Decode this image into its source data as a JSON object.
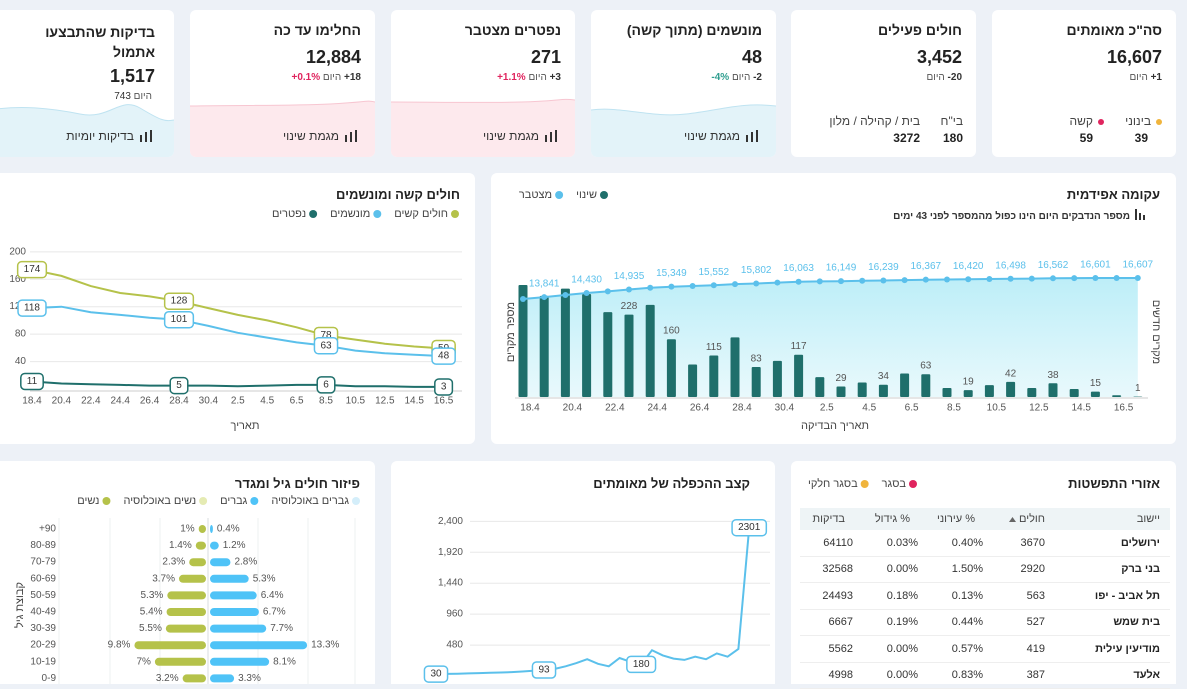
{
  "cards": [
    {
      "title": "סה\"כ מאומתים",
      "value": "16,607",
      "change": "+1",
      "today": "היום",
      "breakdown": [
        {
          "label": "בינוני",
          "value": "39"
        },
        {
          "label": "קשה",
          "value": "59"
        }
      ]
    },
    {
      "title": "חולים פעילים",
      "value": "3,452",
      "change": "-20",
      "today": "היום",
      "breakdown": [
        {
          "label": "בי\"ח",
          "value": "180"
        },
        {
          "label": "בית / קהילה / מלון",
          "value": "3272"
        }
      ]
    },
    {
      "title": "מונשמים (מתוך קשה)",
      "value": "48",
      "change": "-2",
      "today": "היום",
      "percent": "-4%",
      "footer": "מגמת שינוי"
    },
    {
      "title": "נפטרים מצטבר",
      "value": "271",
      "change": "+3",
      "today": "היום",
      "percent": "+1.1%",
      "footer": "מגמת שינוי"
    },
    {
      "title": "החלימו עד כה",
      "value": "12,884",
      "change": "+18",
      "today": "היום",
      "percent": "+0.1%",
      "footer": "מגמת שינוי"
    },
    {
      "title": "בדיקות שהתבצעו אתמול",
      "value": "1,517",
      "change": "743",
      "today": "היום",
      "footer": "בדיקות יומיות"
    }
  ],
  "severe_chart": {
    "type": "line",
    "title": "חולים קשה ומונשמים",
    "x_label": "תאריך",
    "categories": [
      "18.4",
      "20.4",
      "22.4",
      "24.4",
      "26.4",
      "28.4",
      "30.4",
      "2.5",
      "4.5",
      "6.5",
      "8.5",
      "10.5",
      "12.5",
      "14.5",
      "16.5"
    ],
    "series": [
      {
        "name": "חולים קשים",
        "color": "#b5c24a",
        "values": [
          174,
          165,
          150,
          140,
          135,
          128,
          118,
          108,
          100,
          90,
          78,
          72,
          66,
          62,
          59
        ],
        "value_labels": [
          "174",
          null,
          null,
          null,
          null,
          "128",
          null,
          null,
          null,
          null,
          "78",
          null,
          null,
          null,
          "59"
        ]
      },
      {
        "name": "מונשמים",
        "color": "#5bc0eb",
        "values": [
          118,
          120,
          112,
          108,
          104,
          101,
          92,
          82,
          75,
          68,
          63,
          56,
          52,
          50,
          48
        ],
        "value_labels": [
          "118",
          null,
          null,
          null,
          null,
          "101",
          null,
          null,
          null,
          null,
          "63",
          null,
          null,
          null,
          "48"
        ]
      },
      {
        "name": "נפטרים",
        "color": "#1f6f6b",
        "values": [
          11,
          8,
          7,
          6,
          5,
          5,
          5,
          4,
          5,
          6,
          6,
          4,
          4,
          3,
          3
        ],
        "value_labels": [
          "11",
          null,
          null,
          null,
          null,
          "5",
          null,
          null,
          null,
          null,
          "6",
          null,
          null,
          null,
          "3"
        ]
      }
    ],
    "ylim": [
      0,
      210
    ],
    "yticks": [
      40,
      80,
      120,
      160,
      200
    ]
  },
  "epidemic_chart": {
    "type": "bar",
    "title": "עקומה אפידמית",
    "subtitle": "מספר הנדבקים היום הינו כפול מהמספר לפני 43 ימים",
    "x_label": "תאריך הבדיקה",
    "y_label": "מספר מקרים",
    "y2_label": "מקרים חדשים",
    "categories": [
      "18.4",
      null,
      "20.4",
      null,
      "22.4",
      null,
      "24.4",
      null,
      "26.4",
      null,
      "28.4",
      null,
      "30.4",
      null,
      "2.5",
      null,
      "4.5",
      null,
      "6.5",
      null,
      "8.5",
      null,
      "10.5",
      null,
      "12.5",
      null,
      "14.5",
      null,
      "16.5",
      null
    ],
    "series": [
      {
        "name": "שינוי",
        "color": "#1f6f6b",
        "values": [
          310,
          280,
          300,
          285,
          235,
          228,
          255,
          160,
          90,
          115,
          165,
          83,
          100,
          117,
          55,
          29,
          40,
          34,
          65,
          63,
          25,
          19,
          33,
          42,
          25,
          38,
          22,
          15,
          5,
          1
        ],
        "value_labels": [
          null,
          null,
          null,
          null,
          null,
          "228",
          null,
          "160",
          null,
          "115",
          null,
          "83",
          null,
          "117",
          null,
          "29",
          null,
          "34",
          null,
          "63",
          null,
          "19",
          null,
          "42",
          null,
          "38",
          null,
          "15",
          null,
          "1"
        ]
      },
      {
        "name": "מצטבר",
        "color": "#5bc0eb",
        "values": [
          13560,
          13841,
          14140,
          14430,
          14660,
          14935,
          15190,
          15349,
          15440,
          15552,
          15720,
          15802,
          15945,
          16063,
          16120,
          16149,
          16205,
          16239,
          16304,
          16367,
          16395,
          16420,
          16456,
          16498,
          16524,
          16562,
          16586,
          16601,
          16606,
          16607
        ],
        "value_labels": [
          null,
          "13,841",
          null,
          "14,430",
          null,
          "14,935",
          null,
          "15,349",
          null,
          "15,552",
          null,
          "15,802",
          null,
          "16,063",
          null,
          "16,149",
          null,
          "16,239",
          null,
          "16,367",
          null,
          "16,420",
          null,
          "16,498",
          null,
          "16,562",
          null,
          "16,601",
          null,
          "16,607"
        ]
      }
    ]
  },
  "age_chart": {
    "type": "bar",
    "title": "פיזור חולים גיל ומגדר",
    "y_label": "קבוצת גיל",
    "categories": [
      "+90",
      "80-89",
      "70-79",
      "60-69",
      "50-59",
      "40-49",
      "30-39",
      "20-29",
      "10-19",
      "0-9"
    ],
    "series": [
      {
        "name": "גברים באוכלוסיה",
        "color": "#d4eefa"
      },
      {
        "name": "גברים",
        "color": "#4fc3f7",
        "side": "right",
        "values": [
          0.4,
          1.2,
          2.8,
          5.3,
          6.4,
          6.7,
          7.7,
          13.3,
          8.1,
          3.3
        ],
        "value_labels": [
          "0.4%",
          "1.2%",
          "2.8%",
          "5.3%",
          "6.4%",
          "6.7%",
          "7.7%",
          "13.3%",
          "8.1%",
          "3.3%"
        ]
      },
      {
        "name": "נשים באוכלוסיה",
        "color": "#e5ebb3"
      },
      {
        "name": "נשים",
        "color": "#b5c24a",
        "side": "left",
        "values": [
          1,
          1.4,
          2.3,
          3.7,
          5.3,
          5.4,
          5.5,
          9.8,
          7,
          3.2
        ],
        "value_labels": [
          "1%",
          "1.4%",
          "2.3%",
          "3.7%",
          "5.3%",
          "5.4%",
          "5.5%",
          "9.8%",
          "7%",
          "3.2%"
        ]
      }
    ]
  },
  "doubling_chart": {
    "type": "line",
    "title": "קצב ההכפלה של מאומתים",
    "color": "#5bc0eb",
    "values": [
      30,
      32,
      35,
      40,
      45,
      50,
      55,
      60,
      70,
      80,
      93,
      110,
      150,
      200,
      260,
      190,
      150,
      280,
      220,
      180,
      400,
      320,
      270,
      250,
      300,
      260,
      350,
      300,
      420,
      2301
    ],
    "value_labels": [
      "30",
      null,
      null,
      null,
      null,
      null,
      null,
      null,
      null,
      null,
      "93",
      null,
      null,
      null,
      null,
      null,
      null,
      null,
      null,
      "180",
      null,
      null,
      null,
      null,
      null,
      null,
      null,
      null,
      null,
      "2301"
    ],
    "ylim": [
      0,
      2560
    ],
    "yticks": [
      480,
      960,
      {
        "value": 1440,
        "label": "1,440"
      },
      {
        "value": 1920,
        "label": "1,920"
      },
      {
        "value": 2400,
        "label": "2,400"
      }
    ]
  },
  "regions": {
    "title": "אזורי התפשטות",
    "legend": [
      {
        "name": "בסגר",
        "color": "#e0245e"
      },
      {
        "name": "בסגר חלקי",
        "color": "#f0b43c"
      }
    ],
    "columns": [
      "יישוב",
      "חולים",
      "% עירוני",
      "% גידול",
      "בדיקות"
    ],
    "rows": [
      [
        "ירושלים",
        "3670",
        "0.40%",
        "0.03%",
        "64110"
      ],
      [
        "בני ברק",
        "2920",
        "1.50%",
        "0.00%",
        "32568"
      ],
      [
        "תל אביב - יפו",
        "563",
        "0.13%",
        "0.18%",
        "24493"
      ],
      [
        "בית שמש",
        "527",
        "0.44%",
        "0.19%",
        "6667"
      ],
      [
        "מודיעין עילית",
        "419",
        "0.57%",
        "0.00%",
        "5562"
      ],
      [
        "אלעד",
        "387",
        "0.83%",
        "0.00%",
        "4998"
      ]
    ]
  }
}
